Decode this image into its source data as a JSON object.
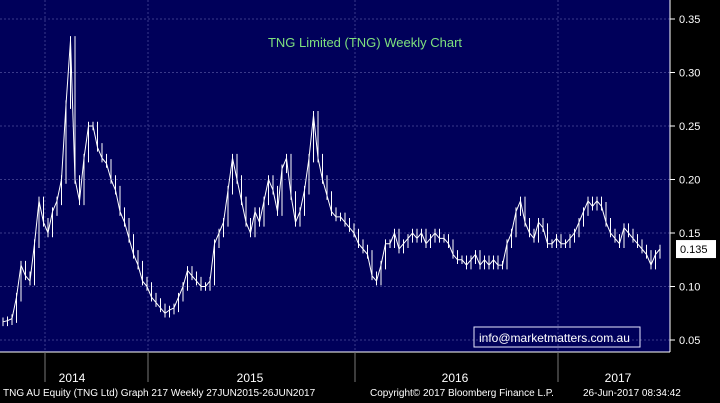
{
  "chart_data": {
    "type": "line",
    "title": "TNG Limited (TNG) Weekly Chart",
    "x_ticks": [
      "2014",
      "2015",
      "2016",
      "2017"
    ],
    "y_ticks": [
      "0.35",
      "0.30",
      "0.25",
      "0.20",
      "0.15",
      "0.10",
      "0.05"
    ],
    "ylim": [
      0.05,
      0.35
    ],
    "last_price_label": "0.135",
    "watermark": "info@marketmatters.com.au",
    "grid": true,
    "series": [
      {
        "values": [
          0.067,
          0.068,
          0.07,
          0.09,
          0.12,
          0.11,
          0.105,
          0.14,
          0.18,
          0.16,
          0.15,
          0.17,
          0.18,
          0.2,
          0.27,
          0.33,
          0.2,
          0.18,
          0.22,
          0.25,
          0.25,
          0.23,
          0.22,
          0.215,
          0.2,
          0.19,
          0.17,
          0.16,
          0.145,
          0.13,
          0.12,
          0.105,
          0.1,
          0.09,
          0.085,
          0.08,
          0.075,
          0.078,
          0.08,
          0.09,
          0.1,
          0.115,
          0.11,
          0.105,
          0.1,
          0.1,
          0.105,
          0.14,
          0.15,
          0.16,
          0.19,
          0.22,
          0.2,
          0.18,
          0.16,
          0.15,
          0.17,
          0.16,
          0.18,
          0.2,
          0.19,
          0.17,
          0.21,
          0.22,
          0.185,
          0.16,
          0.17,
          0.19,
          0.22,
          0.26,
          0.22,
          0.2,
          0.185,
          0.17,
          0.165,
          0.165,
          0.16,
          0.155,
          0.15,
          0.14,
          0.135,
          0.13,
          0.11,
          0.105,
          0.12,
          0.14,
          0.14,
          0.15,
          0.135,
          0.14,
          0.145,
          0.15,
          0.145,
          0.15,
          0.14,
          0.145,
          0.15,
          0.145,
          0.145,
          0.14,
          0.13,
          0.125,
          0.125,
          0.12,
          0.125,
          0.13,
          0.12,
          0.125,
          0.12,
          0.125,
          0.12,
          0.12,
          0.14,
          0.15,
          0.17,
          0.18,
          0.16,
          0.15,
          0.145,
          0.16,
          0.155,
          0.14,
          0.14,
          0.145,
          0.14,
          0.14,
          0.145,
          0.15,
          0.16,
          0.17,
          0.18,
          0.175,
          0.18,
          0.175,
          0.16,
          0.15,
          0.145,
          0.14,
          0.155,
          0.15,
          0.145,
          0.14,
          0.135,
          0.13,
          0.12,
          0.13,
          0.135
        ]
      }
    ]
  },
  "footer": {
    "left": "TNG AU Equity (TNG Ltd) Graph 217  Weekly 27JUN2015-26JUN2017",
    "middle": "Copyright© 2017 Bloomberg Finance L.P.",
    "right": "26-Jun-2017 08:34:42"
  },
  "colors": {
    "background": "#00005a",
    "grid": "#3a3a8a",
    "price": "#ffffff",
    "title": "#7ee07e",
    "watermark_text": "#ffffff",
    "watermark_border": "#e6e6ff"
  }
}
